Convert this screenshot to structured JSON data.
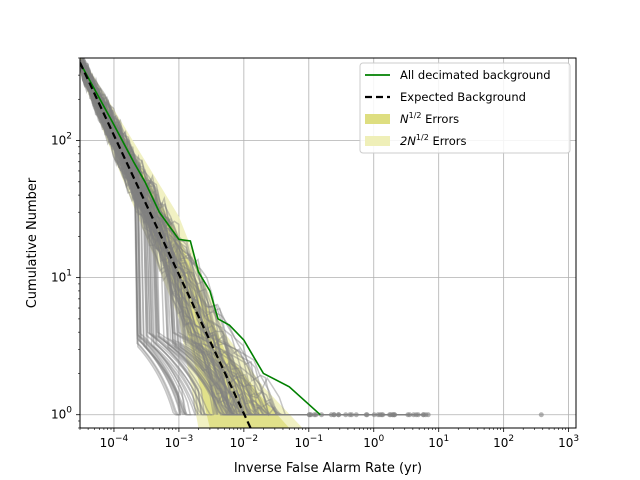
{
  "chart_data": {
    "type": "line",
    "xlabel": "Inverse False Alarm Rate (yr)",
    "ylabel": "Cumulative Number",
    "xscale": "log",
    "yscale": "log",
    "xlim": [
      3e-05,
      1300
    ],
    "ylim": [
      0.8,
      400
    ],
    "grid": true,
    "legend_position": "top-right",
    "x_tick_labels": [
      {
        "value": 0.0001,
        "base": "10",
        "exp": "−4"
      },
      {
        "value": 0.001,
        "base": "10",
        "exp": "−3"
      },
      {
        "value": 0.01,
        "base": "10",
        "exp": "−2"
      },
      {
        "value": 0.1,
        "base": "10",
        "exp": "−1"
      },
      {
        "value": 1,
        "base": "10",
        "exp": "0"
      },
      {
        "value": 10,
        "base": "10",
        "exp": "1"
      },
      {
        "value": 100,
        "base": "10",
        "exp": "2"
      },
      {
        "value": 1000,
        "base": "10",
        "exp": "3"
      }
    ],
    "y_tick_labels": [
      {
        "value": 1,
        "base": "10",
        "exp": "0"
      },
      {
        "value": 10,
        "base": "10",
        "exp": "1"
      },
      {
        "value": 100,
        "base": "10",
        "exp": "2"
      }
    ],
    "legend": [
      {
        "label": "All decimated background",
        "style": "line",
        "color": "#008000"
      },
      {
        "label": "Expected Background",
        "style": "dashed",
        "color": "#000000"
      },
      {
        "label_base": "N",
        "label_sup": "1/2",
        "label_rest": " Errors",
        "style": "patch",
        "color": "#dede80"
      },
      {
        "label_base": "2N",
        "label_sup": "1/2",
        "label_rest": " Errors",
        "style": "patch",
        "color": "#efefb8"
      }
    ],
    "series": [
      {
        "name": "All decimated background",
        "color": "#008000",
        "points": [
          [
            3e-05,
            370
          ],
          [
            0.0001,
            130
          ],
          [
            0.0002,
            70
          ],
          [
            0.0003,
            50
          ],
          [
            0.0005,
            30
          ],
          [
            0.0007,
            24
          ],
          [
            0.001,
            19
          ],
          [
            0.0015,
            18.5
          ],
          [
            0.002,
            11
          ],
          [
            0.003,
            8
          ],
          [
            0.004,
            5
          ],
          [
            0.006,
            4.5
          ],
          [
            0.01,
            3.5
          ],
          [
            0.02,
            2
          ],
          [
            0.05,
            1.6
          ],
          [
            0.15,
            1
          ]
        ]
      },
      {
        "name": "Expected Background",
        "color": "#000000",
        "points": [
          [
            3e-05,
            370
          ],
          [
            0.0127,
            0.8
          ]
        ]
      }
    ],
    "decimated_realizations": {
      "color": "#808080",
      "count": 100,
      "start": [
        3e-05,
        370
      ],
      "tail_x_range": [
        0.001,
        9
      ],
      "outlier_point": [
        380,
        1
      ]
    },
    "error_bands": [
      {
        "name": "2N^1/2",
        "color": "#efefb8",
        "lower": [
          [
            3e-05,
            310
          ],
          [
            0.001,
            5
          ],
          [
            0.002,
            0.8
          ]
        ],
        "upper": [
          [
            3e-05,
            430
          ],
          [
            0.001,
            28
          ],
          [
            0.005,
            4
          ],
          [
            0.02,
            1.6
          ],
          [
            0.08,
            0.8
          ]
        ]
      },
      {
        "name": "N^1/2",
        "color": "#dede80",
        "lower": [
          [
            3e-05,
            330
          ],
          [
            0.001,
            7
          ],
          [
            0.003,
            0.8
          ]
        ],
        "upper": [
          [
            3e-05,
            410
          ],
          [
            0.001,
            20
          ],
          [
            0.005,
            3
          ],
          [
            0.02,
            1.3
          ],
          [
            0.05,
            0.8
          ]
        ]
      }
    ]
  }
}
